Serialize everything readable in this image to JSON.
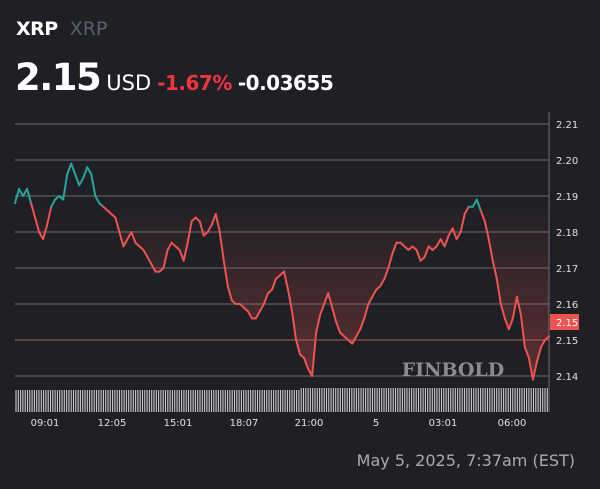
{
  "header": {
    "symbol": "XRP",
    "name": "XRP",
    "price": "2.15",
    "currency": "USD",
    "change_pct": "-1.67%",
    "change_abs": "-0.03655"
  },
  "timestamp": "May 5, 2025, 7:37am (EST)",
  "watermark": "FINBOLD",
  "colors": {
    "up": "#26a69a",
    "down": "#ef5350",
    "background": "#1e2025"
  },
  "chart_data": {
    "type": "line",
    "ylim": [
      2.135,
      2.215
    ],
    "y_ticks": [
      "2.21",
      "2.20",
      "2.19",
      "2.18",
      "2.17",
      "2.16",
      "2.15",
      "2.14"
    ],
    "x_ticks": [
      "09:01",
      "12:05",
      "15:01",
      "18:07",
      "21:00",
      "5",
      "03:01",
      "06:00"
    ],
    "reference_price": 2.1865,
    "last_price_label": "2.15",
    "grid": true,
    "series": [
      {
        "values": [
          2.188,
          2.192,
          2.19,
          2.192,
          2.188,
          2.184,
          2.18,
          2.178,
          2.182,
          2.187,
          2.189,
          2.19,
          2.189,
          2.196,
          2.199,
          2.196,
          2.193,
          2.195,
          2.198,
          2.196,
          2.19,
          2.188,
          2.187,
          2.186,
          2.185,
          2.184,
          2.18,
          2.176,
          2.178,
          2.18,
          2.177,
          2.176,
          2.175,
          2.173,
          2.171,
          2.169,
          2.169,
          2.17,
          2.175,
          2.177,
          2.176,
          2.175,
          2.172,
          2.177,
          2.183,
          2.184,
          2.183,
          2.179,
          2.18,
          2.182,
          2.185,
          2.18,
          2.172,
          2.165,
          2.161,
          2.16,
          2.16,
          2.159,
          2.158,
          2.156,
          2.156,
          2.158,
          2.16,
          2.163,
          2.164,
          2.167,
          2.168,
          2.169,
          2.164,
          2.158,
          2.15,
          2.146,
          2.145,
          2.142,
          2.14,
          2.152,
          2.157,
          2.16,
          2.163,
          2.159,
          2.155,
          2.152,
          2.151,
          2.15,
          2.149,
          2.151,
          2.153,
          2.156,
          2.16,
          2.162,
          2.164,
          2.165,
          2.167,
          2.17,
          2.174,
          2.177,
          2.177,
          2.176,
          2.175,
          2.176,
          2.175,
          2.172,
          2.173,
          2.176,
          2.175,
          2.176,
          2.178,
          2.176,
          2.179,
          2.181,
          2.178,
          2.18,
          2.185,
          2.187,
          2.187,
          2.189,
          2.186,
          2.183,
          2.178,
          2.172,
          2.167,
          2.16,
          2.156,
          2.153,
          2.156,
          2.162,
          2.157,
          2.148,
          2.145,
          2.139,
          2.144,
          2.148,
          2.15,
          2.151
        ]
      }
    ]
  }
}
